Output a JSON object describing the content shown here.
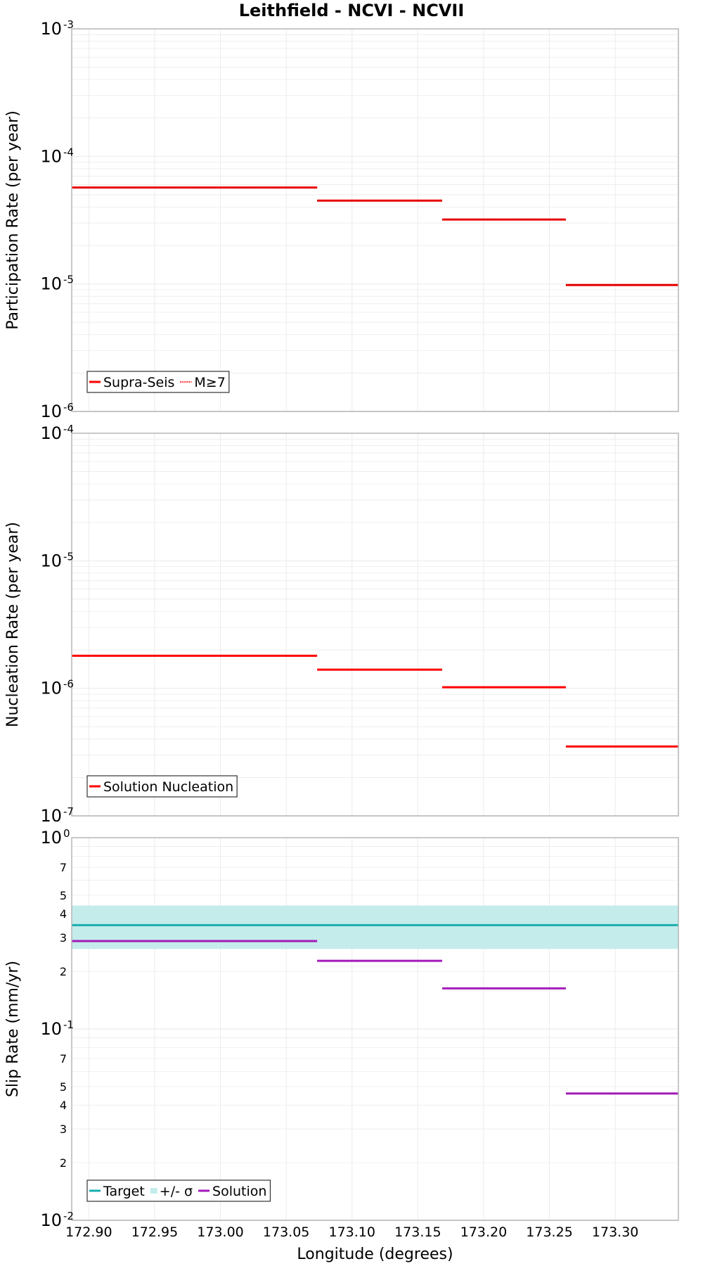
{
  "title": "Leithfield - NCVI - NCVII",
  "colors": {
    "red": "#ff0000",
    "target": "#1aaeae",
    "band": "#c4eceb",
    "solution": "#a21ab8",
    "grid": "#ebebeb",
    "frame": "#b5b5b5"
  },
  "chart_data": [
    {
      "type": "line",
      "name": "participation",
      "ylabel": "Participation Rate (per year)",
      "yscale": "log",
      "ylim": [
        1e-06,
        0.001
      ],
      "xlim": [
        172.887,
        173.348
      ],
      "y_major_ticks": [
        {
          "value": 1e-06,
          "base": "10",
          "exp": "-6"
        },
        {
          "value": 1e-05,
          "base": "10",
          "exp": "-5"
        },
        {
          "value": 0.0001,
          "base": "10",
          "exp": "-4"
        },
        {
          "value": 0.001,
          "base": "10",
          "exp": "-3"
        }
      ],
      "series": [
        {
          "name": "Supra-Seis",
          "style": "solid",
          "segments": [
            {
              "x": [
                172.887,
                173.0735
              ],
              "y": 5.7e-05
            },
            {
              "x": [
                173.0735,
                173.1685
              ],
              "y": 4.5e-05
            },
            {
              "x": [
                173.1685,
                173.2625
              ],
              "y": 3.2e-05
            },
            {
              "x": [
                173.2625,
                173.348
              ],
              "y": 9.8e-06
            }
          ]
        },
        {
          "name": "M≥7",
          "style": "dotted",
          "segments": [
            {
              "x": [
                172.887,
                173.0735
              ],
              "y": 5.7e-05
            },
            {
              "x": [
                173.0735,
                173.1685
              ],
              "y": 4.5e-05
            },
            {
              "x": [
                173.1685,
                173.2625
              ],
              "y": 3.2e-05
            },
            {
              "x": [
                173.2625,
                173.348
              ],
              "y": 9.8e-06
            }
          ]
        }
      ],
      "legend": {
        "placement": "bottom-left",
        "entries": [
          {
            "label": "Supra-Seis",
            "style": "solid"
          },
          {
            "label": "M≥7",
            "style": "dotted"
          }
        ]
      }
    },
    {
      "type": "line",
      "name": "nucleation",
      "ylabel": "Nucleation Rate (per year)",
      "yscale": "log",
      "ylim": [
        1e-07,
        0.0001
      ],
      "xlim": [
        172.887,
        173.348
      ],
      "y_major_ticks": [
        {
          "value": 1e-07,
          "base": "10",
          "exp": "-7"
        },
        {
          "value": 1e-06,
          "base": "10",
          "exp": "-6"
        },
        {
          "value": 1e-05,
          "base": "10",
          "exp": "-5"
        },
        {
          "value": 0.0001,
          "base": "10",
          "exp": "-4"
        }
      ],
      "series": [
        {
          "name": "Solution Nucleation",
          "style": "solid",
          "segments": [
            {
              "x": [
                172.887,
                173.0735
              ],
              "y": 1.8e-06
            },
            {
              "x": [
                173.0735,
                173.1685
              ],
              "y": 1.4e-06
            },
            {
              "x": [
                173.1685,
                173.2625
              ],
              "y": 1.02e-06
            },
            {
              "x": [
                173.2625,
                173.348
              ],
              "y": 3.5e-07
            }
          ]
        }
      ],
      "legend": {
        "placement": "bottom-left",
        "entries": [
          {
            "label": "Solution Nucleation",
            "style": "solid"
          }
        ]
      }
    },
    {
      "type": "line",
      "name": "sliprate",
      "ylabel": "Slip Rate (mm/yr)",
      "xlabel": "Longitude (degrees)",
      "yscale": "log",
      "ylim": [
        0.01,
        1
      ],
      "xlim": [
        172.887,
        173.348
      ],
      "x_ticks": [
        {
          "value": 172.9,
          "label": "172.90"
        },
        {
          "value": 172.95,
          "label": "172.95"
        },
        {
          "value": 173.0,
          "label": "173.00"
        },
        {
          "value": 173.05,
          "label": "173.05"
        },
        {
          "value": 173.1,
          "label": "173.10"
        },
        {
          "value": 173.15,
          "label": "173.15"
        },
        {
          "value": 173.2,
          "label": "173.20"
        },
        {
          "value": 173.25,
          "label": "173.25"
        },
        {
          "value": 173.3,
          "label": "173.30"
        }
      ],
      "y_major_ticks": [
        {
          "value": 0.01,
          "base": "10",
          "exp": "-2"
        },
        {
          "value": 0.1,
          "base": "10",
          "exp": "-1"
        },
        {
          "value": 1,
          "base": "10",
          "exp": "0"
        }
      ],
      "y_minor_labels": [
        {
          "value": 0.02,
          "label": "2"
        },
        {
          "value": 0.03,
          "label": "3"
        },
        {
          "value": 0.04,
          "label": "4"
        },
        {
          "value": 0.05,
          "label": "5"
        },
        {
          "value": 0.07,
          "label": "7"
        },
        {
          "value": 0.2,
          "label": "2"
        },
        {
          "value": 0.3,
          "label": "3"
        },
        {
          "value": 0.4,
          "label": "4"
        },
        {
          "value": 0.5,
          "label": "5"
        },
        {
          "value": 0.7,
          "label": "7"
        }
      ],
      "band": {
        "name": "+/- σ",
        "lower": 0.262,
        "upper": 0.442,
        "x": [
          172.887,
          173.348
        ]
      },
      "series": [
        {
          "name": "Target",
          "style": "solid",
          "segments": [
            {
              "x": [
                172.887,
                173.348
              ],
              "y": 0.349
            }
          ]
        },
        {
          "name": "Solution",
          "style": "solid",
          "segments": [
            {
              "x": [
                172.887,
                173.0735
              ],
              "y": 0.288
            },
            {
              "x": [
                173.0735,
                173.1685
              ],
              "y": 0.227
            },
            {
              "x": [
                173.1685,
                173.2625
              ],
              "y": 0.163
            },
            {
              "x": [
                173.2625,
                173.348
              ],
              "y": 0.046
            }
          ]
        }
      ],
      "legend": {
        "placement": "bottom-left",
        "entries": [
          {
            "label": "Target",
            "style": "solid"
          },
          {
            "label": "+/- σ",
            "style": "band"
          },
          {
            "label": "Solution",
            "style": "solid"
          }
        ]
      }
    }
  ]
}
